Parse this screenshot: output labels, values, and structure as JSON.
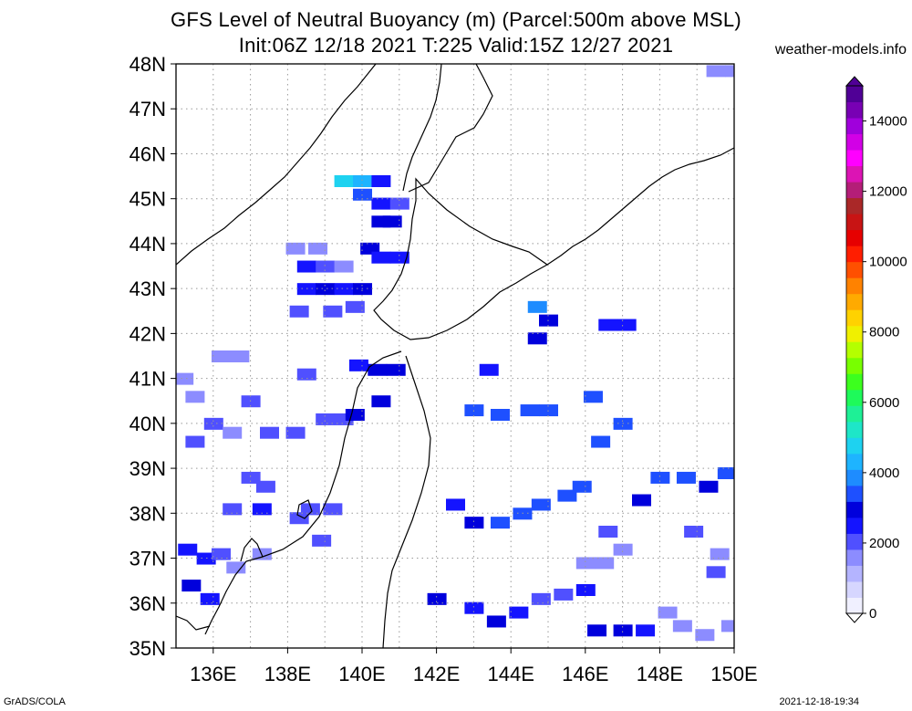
{
  "title_line1": "GFS Level of Neutral Buoyancy (m) (Parcel:500m above MSL)",
  "title_line2": "Init:06Z 12/18 2021 T:225 Valid:15Z 12/27 2021",
  "site": "weather-models.info",
  "footer_left": "GrADS/COLA",
  "footer_right": "2021-12-18-19:34",
  "lat_labels": [
    "48N",
    "47N",
    "46N",
    "45N",
    "44N",
    "43N",
    "42N",
    "41N",
    "40N",
    "39N",
    "38N",
    "37N",
    "36N",
    "35N"
  ],
  "lon_labels": [
    "136E",
    "138E",
    "140E",
    "142E",
    "144E",
    "146E",
    "148E",
    "150E"
  ],
  "colorbar": {
    "labels": [
      "14000",
      "12000",
      "10000",
      "8000",
      "6000",
      "4000",
      "2000",
      "0"
    ],
    "colors": [
      "#f0f0ff",
      "#d6d6ff",
      "#b4b4ff",
      "#8c8cff",
      "#5050ff",
      "#1414ff",
      "#0000dc",
      "#1e50ff",
      "#1e8cff",
      "#1eb4ff",
      "#1ed2f0",
      "#1ee6c8",
      "#1ef096",
      "#1efa5a",
      "#3cff1e",
      "#78ff00",
      "#b4ff00",
      "#f0f000",
      "#ffd200",
      "#ffaa00",
      "#ff8200",
      "#ff5000",
      "#ff1e00",
      "#e60000",
      "#c81414",
      "#aa2828",
      "#b41e78",
      "#dc14b4",
      "#ff00ff",
      "#d200e6",
      "#a000dc",
      "#7800b4",
      "#500096"
    ]
  },
  "chart_data": {
    "type": "heatmap",
    "title": "GFS Level of Neutral Buoyancy (m) (Parcel:500m above MSL)",
    "subtitle": "Init:06Z 12/18 2021 T:225 Valid:15Z 12/27 2021",
    "xlim": [
      135,
      150
    ],
    "ylim": [
      35,
      48
    ],
    "units": "m",
    "value_range": [
      0,
      15000
    ],
    "cells": [
      {
        "lon": 149.5,
        "lat": 47.85,
        "v": 1800
      },
      {
        "lon": 150.0,
        "lat": 47.85,
        "v": 1800
      },
      {
        "lon": 139.5,
        "lat": 45.4,
        "v": 4600
      },
      {
        "lon": 140.0,
        "lat": 45.4,
        "v": 4200
      },
      {
        "lon": 140.5,
        "lat": 45.4,
        "v": 2600
      },
      {
        "lon": 140.0,
        "lat": 45.1,
        "v": 3400
      },
      {
        "lon": 140.5,
        "lat": 44.9,
        "v": 2600
      },
      {
        "lon": 141.0,
        "lat": 44.9,
        "v": 2200
      },
      {
        "lon": 140.5,
        "lat": 44.5,
        "v": 2800
      },
      {
        "lon": 140.8,
        "lat": 44.5,
        "v": 2800
      },
      {
        "lon": 138.2,
        "lat": 43.9,
        "v": 1600
      },
      {
        "lon": 138.8,
        "lat": 43.9,
        "v": 1600
      },
      {
        "lon": 140.2,
        "lat": 43.9,
        "v": 2800
      },
      {
        "lon": 138.5,
        "lat": 43.5,
        "v": 2400
      },
      {
        "lon": 139.0,
        "lat": 43.5,
        "v": 2200
      },
      {
        "lon": 139.5,
        "lat": 43.5,
        "v": 1800
      },
      {
        "lon": 140.5,
        "lat": 43.7,
        "v": 2600
      },
      {
        "lon": 141.0,
        "lat": 43.7,
        "v": 2400
      },
      {
        "lon": 138.5,
        "lat": 43.0,
        "v": 2600
      },
      {
        "lon": 139.0,
        "lat": 43.0,
        "v": 2800
      },
      {
        "lon": 139.5,
        "lat": 43.0,
        "v": 2600
      },
      {
        "lon": 140.0,
        "lat": 43.0,
        "v": 2800
      },
      {
        "lon": 138.3,
        "lat": 42.5,
        "v": 2000
      },
      {
        "lon": 139.2,
        "lat": 42.5,
        "v": 2000
      },
      {
        "lon": 139.8,
        "lat": 42.6,
        "v": 2200
      },
      {
        "lon": 144.7,
        "lat": 42.6,
        "v": 3800
      },
      {
        "lon": 145.0,
        "lat": 42.3,
        "v": 3000
      },
      {
        "lon": 144.7,
        "lat": 41.9,
        "v": 3000
      },
      {
        "lon": 146.6,
        "lat": 42.2,
        "v": 2400
      },
      {
        "lon": 147.1,
        "lat": 42.2,
        "v": 2600
      },
      {
        "lon": 135.2,
        "lat": 41.0,
        "v": 1600
      },
      {
        "lon": 135.5,
        "lat": 40.6,
        "v": 1600
      },
      {
        "lon": 136.2,
        "lat": 41.5,
        "v": 1800
      },
      {
        "lon": 136.7,
        "lat": 41.5,
        "v": 1800
      },
      {
        "lon": 137.0,
        "lat": 40.5,
        "v": 2000
      },
      {
        "lon": 136.0,
        "lat": 40.0,
        "v": 2000
      },
      {
        "lon": 136.5,
        "lat": 39.8,
        "v": 1800
      },
      {
        "lon": 137.5,
        "lat": 39.8,
        "v": 2000
      },
      {
        "lon": 138.2,
        "lat": 39.8,
        "v": 2200
      },
      {
        "lon": 135.5,
        "lat": 39.6,
        "v": 2000
      },
      {
        "lon": 139.0,
        "lat": 40.1,
        "v": 2000
      },
      {
        "lon": 139.5,
        "lat": 40.1,
        "v": 2000
      },
      {
        "lon": 138.5,
        "lat": 41.1,
        "v": 2000
      },
      {
        "lon": 139.9,
        "lat": 41.3,
        "v": 2600
      },
      {
        "lon": 140.4,
        "lat": 41.2,
        "v": 3000
      },
      {
        "lon": 140.9,
        "lat": 41.2,
        "v": 3000
      },
      {
        "lon": 143.4,
        "lat": 41.2,
        "v": 2400
      },
      {
        "lon": 140.5,
        "lat": 40.5,
        "v": 2800
      },
      {
        "lon": 139.8,
        "lat": 40.2,
        "v": 2800
      },
      {
        "lon": 143.0,
        "lat": 40.3,
        "v": 3200
      },
      {
        "lon": 143.7,
        "lat": 40.2,
        "v": 3200
      },
      {
        "lon": 144.5,
        "lat": 40.3,
        "v": 3200
      },
      {
        "lon": 145.0,
        "lat": 40.3,
        "v": 3200
      },
      {
        "lon": 146.2,
        "lat": 40.6,
        "v": 3600
      },
      {
        "lon": 147.0,
        "lat": 40.0,
        "v": 3400
      },
      {
        "lon": 146.4,
        "lat": 39.6,
        "v": 3600
      },
      {
        "lon": 137.0,
        "lat": 38.8,
        "v": 2000
      },
      {
        "lon": 137.4,
        "lat": 38.6,
        "v": 2000
      },
      {
        "lon": 136.5,
        "lat": 38.1,
        "v": 2000
      },
      {
        "lon": 137.3,
        "lat": 38.1,
        "v": 2400
      },
      {
        "lon": 138.3,
        "lat": 37.9,
        "v": 2200
      },
      {
        "lon": 138.6,
        "lat": 38.1,
        "v": 2000
      },
      {
        "lon": 139.2,
        "lat": 38.1,
        "v": 2000
      },
      {
        "lon": 138.9,
        "lat": 37.4,
        "v": 2200
      },
      {
        "lon": 142.5,
        "lat": 38.2,
        "v": 2600
      },
      {
        "lon": 143.0,
        "lat": 37.8,
        "v": 3000
      },
      {
        "lon": 143.7,
        "lat": 37.8,
        "v": 3200
      },
      {
        "lon": 144.3,
        "lat": 38.0,
        "v": 3200
      },
      {
        "lon": 144.8,
        "lat": 38.2,
        "v": 3200
      },
      {
        "lon": 145.5,
        "lat": 38.4,
        "v": 3400
      },
      {
        "lon": 145.9,
        "lat": 38.6,
        "v": 3400
      },
      {
        "lon": 146.6,
        "lat": 37.6,
        "v": 2000
      },
      {
        "lon": 147.5,
        "lat": 38.3,
        "v": 2800
      },
      {
        "lon": 148.0,
        "lat": 38.8,
        "v": 3600
      },
      {
        "lon": 148.7,
        "lat": 38.8,
        "v": 3400
      },
      {
        "lon": 149.3,
        "lat": 38.6,
        "v": 2800
      },
      {
        "lon": 149.8,
        "lat": 38.9,
        "v": 3200
      },
      {
        "lon": 148.9,
        "lat": 37.6,
        "v": 2000
      },
      {
        "lon": 149.6,
        "lat": 37.1,
        "v": 1800
      },
      {
        "lon": 149.5,
        "lat": 36.7,
        "v": 2000
      },
      {
        "lon": 135.3,
        "lat": 37.2,
        "v": 2400
      },
      {
        "lon": 135.8,
        "lat": 37.0,
        "v": 2600
      },
      {
        "lon": 136.2,
        "lat": 37.1,
        "v": 2000
      },
      {
        "lon": 136.6,
        "lat": 36.8,
        "v": 1800
      },
      {
        "lon": 135.4,
        "lat": 36.4,
        "v": 2800
      },
      {
        "lon": 135.9,
        "lat": 36.1,
        "v": 2600
      },
      {
        "lon": 137.3,
        "lat": 37.1,
        "v": 1800
      },
      {
        "lon": 142.0,
        "lat": 36.1,
        "v": 3000
      },
      {
        "lon": 143.0,
        "lat": 35.9,
        "v": 2400
      },
      {
        "lon": 143.6,
        "lat": 35.6,
        "v": 3000
      },
      {
        "lon": 144.2,
        "lat": 35.8,
        "v": 2600
      },
      {
        "lon": 144.8,
        "lat": 36.1,
        "v": 2200
      },
      {
        "lon": 145.4,
        "lat": 36.2,
        "v": 2200
      },
      {
        "lon": 146.0,
        "lat": 36.3,
        "v": 2400
      },
      {
        "lon": 146.0,
        "lat": 36.9,
        "v": 1800
      },
      {
        "lon": 146.5,
        "lat": 36.9,
        "v": 1600
      },
      {
        "lon": 147.0,
        "lat": 37.2,
        "v": 1600
      },
      {
        "lon": 146.3,
        "lat": 35.4,
        "v": 2800
      },
      {
        "lon": 147.0,
        "lat": 35.4,
        "v": 2800
      },
      {
        "lon": 147.6,
        "lat": 35.4,
        "v": 2600
      },
      {
        "lon": 148.2,
        "lat": 35.8,
        "v": 1800
      },
      {
        "lon": 148.6,
        "lat": 35.5,
        "v": 1800
      },
      {
        "lon": 149.2,
        "lat": 35.3,
        "v": 1600
      },
      {
        "lon": 149.9,
        "lat": 35.5,
        "v": 1400
      }
    ]
  }
}
